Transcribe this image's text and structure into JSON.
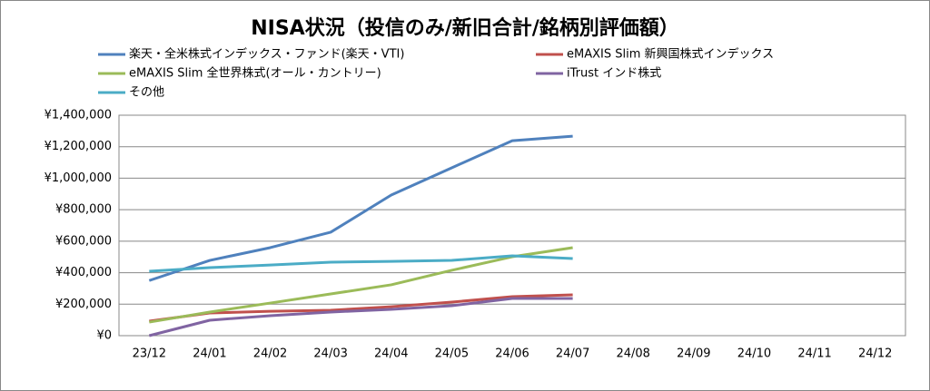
{
  "chart_data": {
    "type": "line",
    "title": "NISA状況（投信のみ/新旧合計/銘柄別評価額）",
    "categories": [
      "23/12",
      "24/01",
      "24/02",
      "24/03",
      "24/04",
      "24/05",
      "24/06",
      "24/07",
      "24/08",
      "24/09",
      "24/10",
      "24/11",
      "24/12"
    ],
    "series": [
      {
        "name": "楽天・全米株式インデックス・ファンド(楽天・VTI)",
        "color": "#4f81bd",
        "values": [
          350000,
          478000,
          559000,
          657000,
          893000,
          1066000,
          1238000,
          1267000,
          null,
          null,
          null,
          null,
          null
        ]
      },
      {
        "name": "eMAXIS Slim 新興国株式インデックス",
        "color": "#c0504d",
        "values": [
          92000,
          144000,
          155000,
          161000,
          184000,
          213000,
          248000,
          259000,
          null,
          null,
          null,
          null,
          null
        ]
      },
      {
        "name": "eMAXIS Slim 全世界株式(オール・カントリー)",
        "color": "#9bbb59",
        "values": [
          86000,
          150000,
          207000,
          265000,
          323000,
          415000,
          501000,
          559000,
          null,
          null,
          null,
          null,
          null
        ]
      },
      {
        "name": "iTrust インド株式",
        "color": "#8064a2",
        "values": [
          0,
          98000,
          127000,
          150000,
          167000,
          190000,
          236000,
          236000,
          null,
          null,
          null,
          null,
          null
        ]
      },
      {
        "name": "その他",
        "color": "#4bacc6",
        "values": [
          409000,
          432000,
          449000,
          467000,
          472000,
          478000,
          507000,
          490000,
          null,
          null,
          null,
          null,
          null
        ]
      }
    ],
    "ylim": [
      0,
      1400000
    ],
    "yticks": [
      {
        "value": 0,
        "label": "¥0"
      },
      {
        "value": 200000,
        "label": "¥200,000"
      },
      {
        "value": 400000,
        "label": "¥400,000"
      },
      {
        "value": 600000,
        "label": "¥600,000"
      },
      {
        "value": 800000,
        "label": "¥800,000"
      },
      {
        "value": 1000000,
        "label": "¥1,000,000"
      },
      {
        "value": 1200000,
        "label": "¥1,200,000"
      },
      {
        "value": 1400000,
        "label": "¥1,400,000"
      }
    ],
    "grid": true,
    "legend": "top"
  }
}
